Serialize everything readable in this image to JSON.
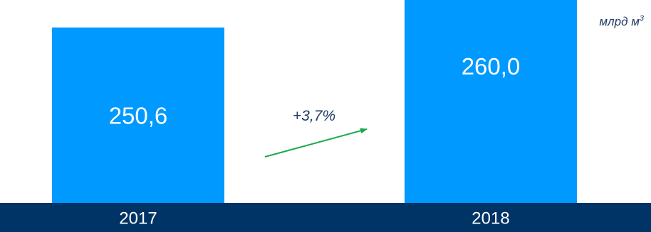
{
  "chart_data": {
    "type": "bar",
    "unit_label": "млрд м",
    "unit_superscript": "3",
    "categories": [
      "2017",
      "2018"
    ],
    "values": [
      250.6,
      260.0
    ],
    "value_labels": [
      "250,6",
      "260,0"
    ],
    "growth_label": "+3,7%",
    "colors": {
      "bar": "#0099ff",
      "axis_band": "#003366",
      "arrow": "#1aa84a",
      "bar_text": "#ffffff",
      "axis_text": "#ffffff",
      "annotation_text": "#1f3b63"
    }
  }
}
